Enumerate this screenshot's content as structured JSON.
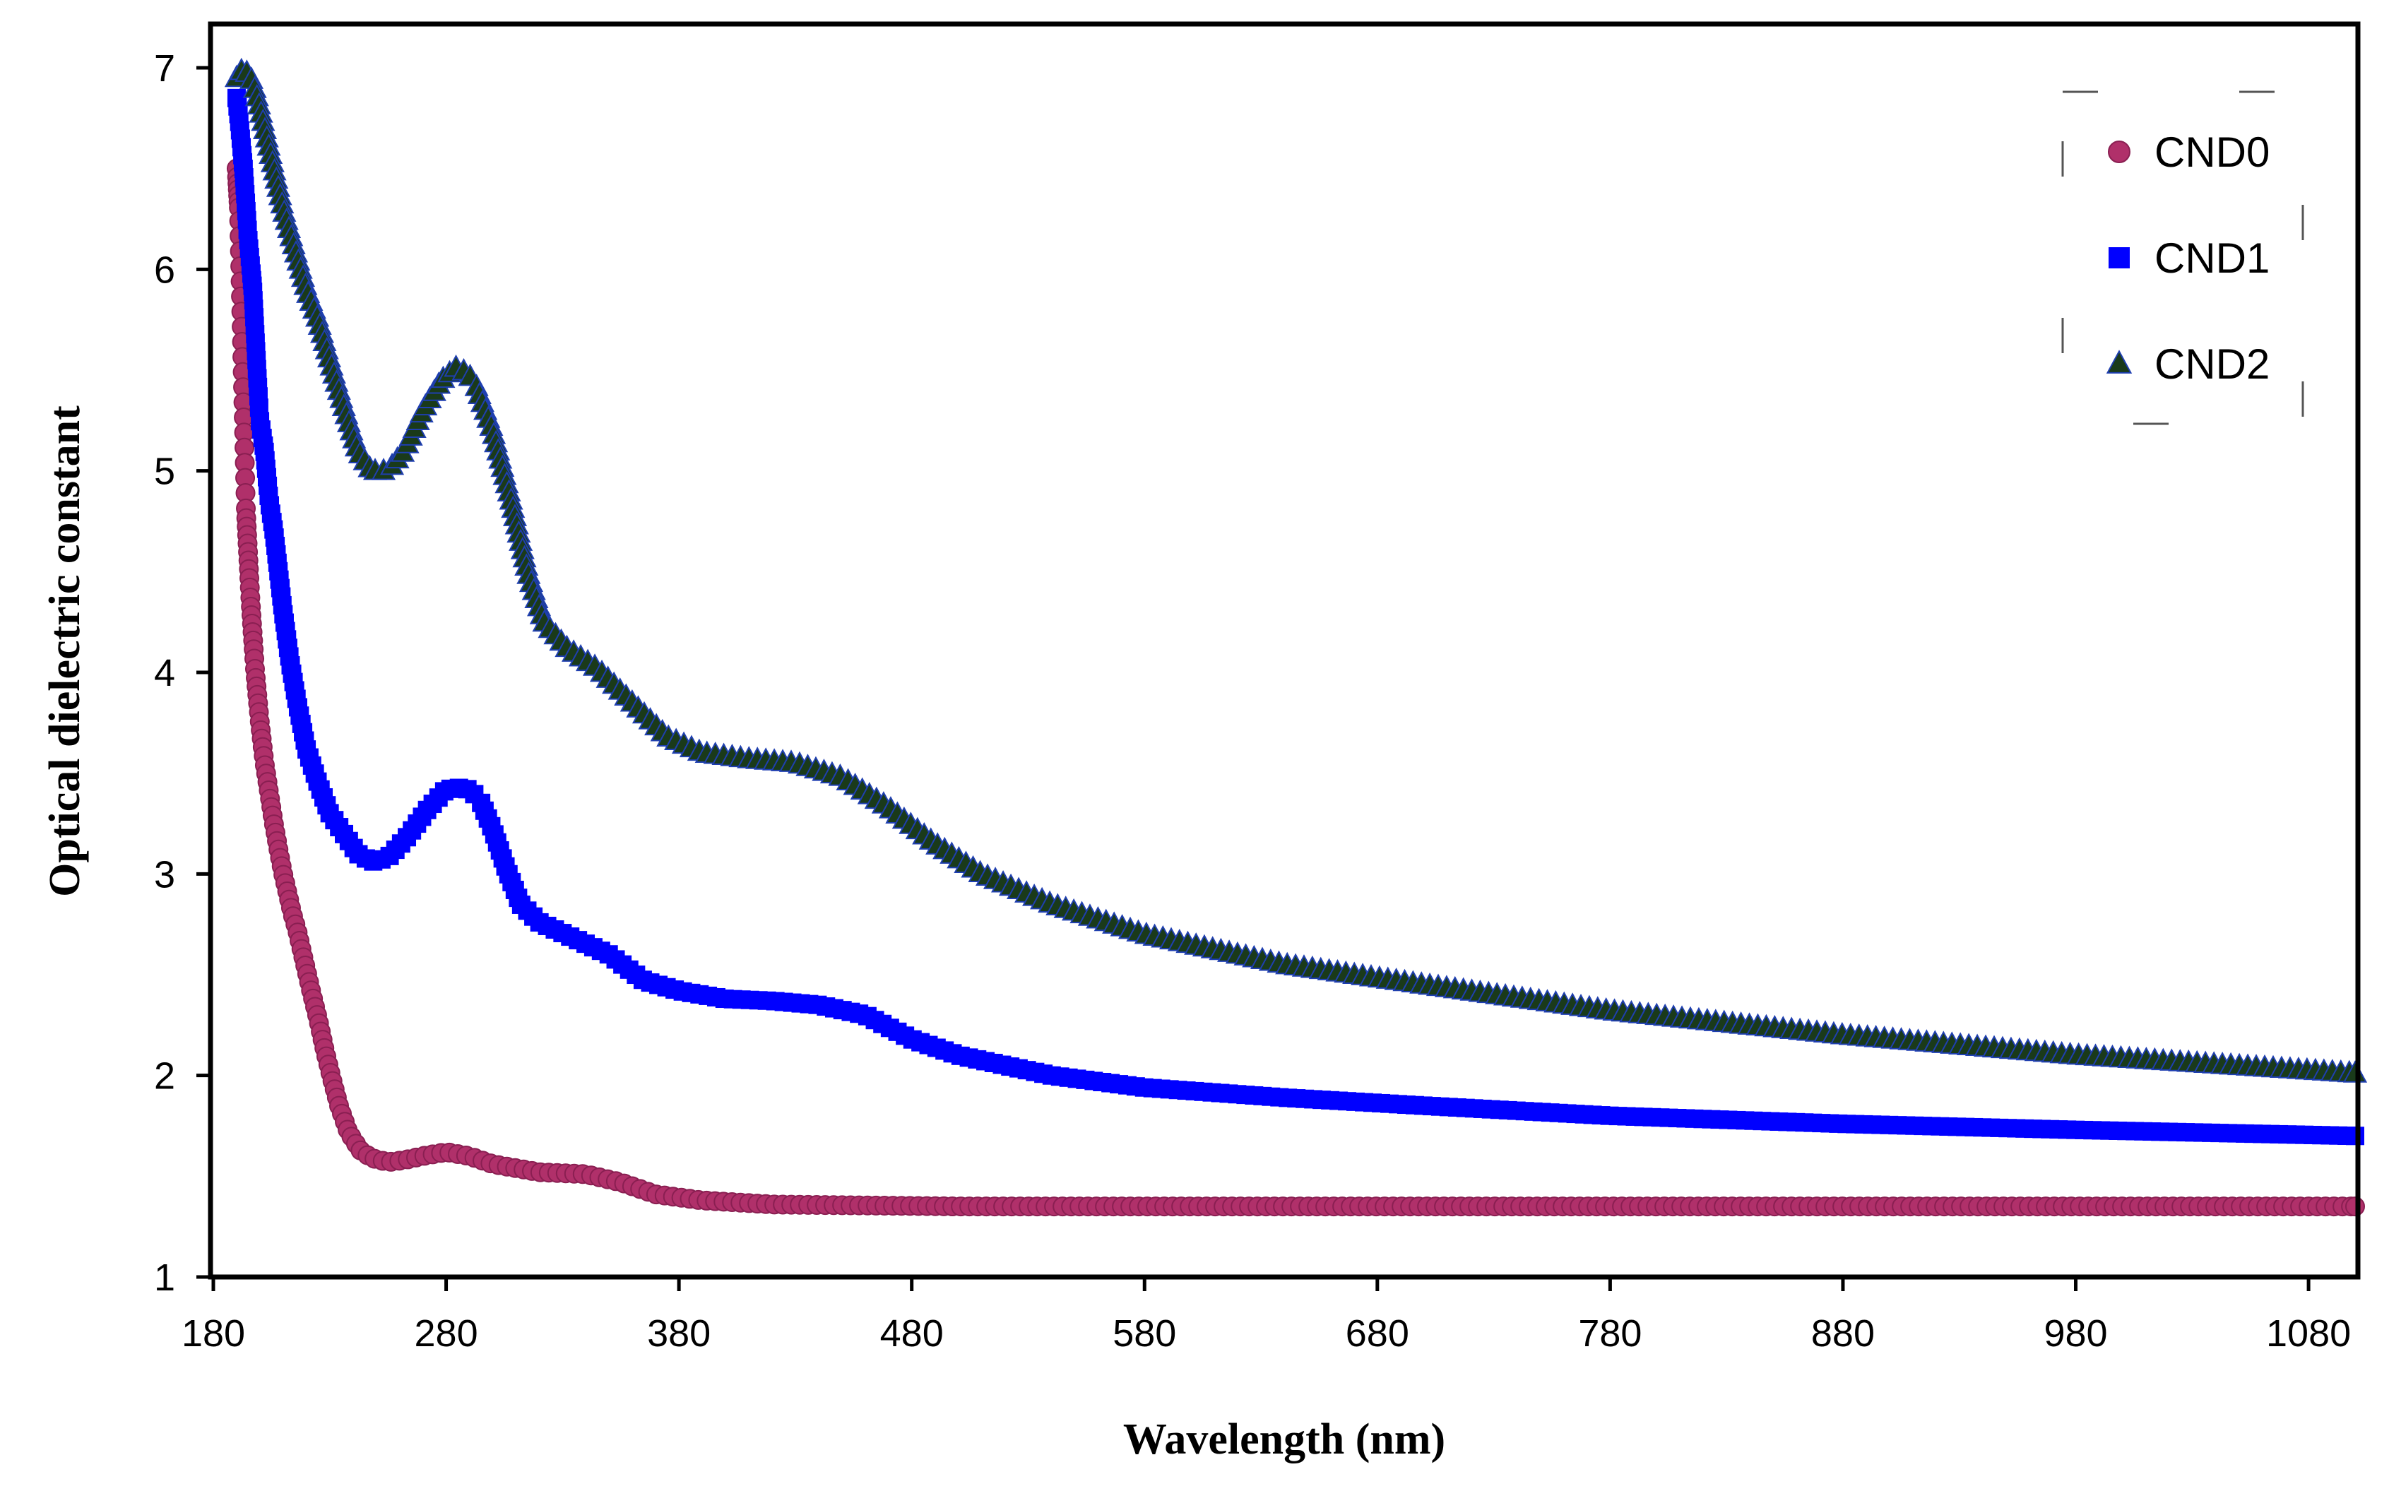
{
  "chart_data": {
    "type": "scatter",
    "title": "",
    "xlabel": "Wavelength (nm)",
    "ylabel": "Optical dielectric constant",
    "xlim": [
      180,
      1100
    ],
    "ylim": [
      1,
      7.2
    ],
    "xticks": [
      180,
      280,
      380,
      480,
      580,
      680,
      780,
      880,
      980,
      1080
    ],
    "yticks": [
      1,
      2,
      3,
      4,
      5,
      6,
      7
    ],
    "xtick_labels": [
      "180",
      "280",
      "380",
      "480",
      "580",
      "680",
      "780",
      "880",
      "980",
      "1080"
    ],
    "ytick_labels": [
      "1",
      "2",
      "3",
      "4",
      "5",
      "6",
      "7"
    ],
    "grid": false,
    "legend_position": "top-right",
    "series": [
      {
        "name": "CND0",
        "marker": "circle",
        "color": "#B0306A",
        "stroke": "#8A1F52",
        "points": [
          [
            190,
            6.5
          ],
          [
            191,
            6.3
          ],
          [
            192,
            5.8
          ],
          [
            193,
            5.3
          ],
          [
            194,
            4.8
          ],
          [
            196,
            4.35
          ],
          [
            198,
            4.0
          ],
          [
            200,
            3.75
          ],
          [
            202,
            3.55
          ],
          [
            204,
            3.4
          ],
          [
            206,
            3.25
          ],
          [
            208,
            3.12
          ],
          [
            210,
            3.0
          ],
          [
            212,
            2.9
          ],
          [
            214,
            2.8
          ],
          [
            216,
            2.72
          ],
          [
            218,
            2.62
          ],
          [
            220,
            2.52
          ],
          [
            222,
            2.42
          ],
          [
            225,
            2.28
          ],
          [
            228,
            2.12
          ],
          [
            231,
            1.98
          ],
          [
            234,
            1.85
          ],
          [
            238,
            1.72
          ],
          [
            243,
            1.63
          ],
          [
            248,
            1.59
          ],
          [
            255,
            1.57
          ],
          [
            262,
            1.58
          ],
          [
            270,
            1.6
          ],
          [
            280,
            1.62
          ],
          [
            290,
            1.6
          ],
          [
            300,
            1.56
          ],
          [
            310,
            1.54
          ],
          [
            320,
            1.52
          ],
          [
            340,
            1.51
          ],
          [
            355,
            1.47
          ],
          [
            370,
            1.41
          ],
          [
            390,
            1.38
          ],
          [
            420,
            1.36
          ],
          [
            500,
            1.35
          ],
          [
            600,
            1.35
          ],
          [
            800,
            1.35
          ],
          [
            1000,
            1.35
          ],
          [
            1100,
            1.35
          ]
        ]
      },
      {
        "name": "CND1",
        "marker": "square",
        "color": "#0000FF",
        "stroke": "#0000D0",
        "points": [
          [
            190,
            6.85
          ],
          [
            191,
            6.75
          ],
          [
            193,
            6.5
          ],
          [
            195,
            6.15
          ],
          [
            197,
            5.9
          ],
          [
            199,
            5.45
          ],
          [
            200,
            5.25
          ],
          [
            202,
            5.1
          ],
          [
            204,
            4.85
          ],
          [
            206,
            4.7
          ],
          [
            208,
            4.5
          ],
          [
            210,
            4.3
          ],
          [
            213,
            4.05
          ],
          [
            216,
            3.85
          ],
          [
            220,
            3.62
          ],
          [
            225,
            3.45
          ],
          [
            230,
            3.3
          ],
          [
            236,
            3.2
          ],
          [
            242,
            3.1
          ],
          [
            248,
            3.06
          ],
          [
            255,
            3.08
          ],
          [
            263,
            3.18
          ],
          [
            272,
            3.32
          ],
          [
            280,
            3.42
          ],
          [
            288,
            3.43
          ],
          [
            294,
            3.38
          ],
          [
            300,
            3.22
          ],
          [
            306,
            3.02
          ],
          [
            312,
            2.85
          ],
          [
            320,
            2.76
          ],
          [
            335,
            2.68
          ],
          [
            350,
            2.6
          ],
          [
            365,
            2.47
          ],
          [
            380,
            2.42
          ],
          [
            400,
            2.38
          ],
          [
            420,
            2.37
          ],
          [
            440,
            2.35
          ],
          [
            460,
            2.3
          ],
          [
            480,
            2.18
          ],
          [
            500,
            2.1
          ],
          [
            520,
            2.05
          ],
          [
            540,
            2.0
          ],
          [
            580,
            1.94
          ],
          [
            640,
            1.89
          ],
          [
            700,
            1.85
          ],
          [
            780,
            1.8
          ],
          [
            880,
            1.76
          ],
          [
            980,
            1.73
          ],
          [
            1100,
            1.7
          ]
        ]
      },
      {
        "name": "CND2",
        "marker": "triangle",
        "color": "#1A3A1A",
        "stroke": "#0A200A",
        "points": [
          [
            190,
            6.95
          ],
          [
            193,
            7.0
          ],
          [
            197,
            6.93
          ],
          [
            200,
            6.8
          ],
          [
            203,
            6.65
          ],
          [
            206,
            6.5
          ],
          [
            210,
            6.3
          ],
          [
            215,
            6.1
          ],
          [
            220,
            5.9
          ],
          [
            225,
            5.75
          ],
          [
            230,
            5.55
          ],
          [
            236,
            5.32
          ],
          [
            242,
            5.1
          ],
          [
            248,
            5.0
          ],
          [
            255,
            5.0
          ],
          [
            262,
            5.1
          ],
          [
            270,
            5.3
          ],
          [
            278,
            5.45
          ],
          [
            285,
            5.52
          ],
          [
            292,
            5.45
          ],
          [
            300,
            5.2
          ],
          [
            308,
            4.85
          ],
          [
            315,
            4.5
          ],
          [
            322,
            4.25
          ],
          [
            332,
            4.12
          ],
          [
            345,
            4.02
          ],
          [
            360,
            3.85
          ],
          [
            375,
            3.68
          ],
          [
            390,
            3.6
          ],
          [
            410,
            3.57
          ],
          [
            430,
            3.55
          ],
          [
            450,
            3.48
          ],
          [
            470,
            3.33
          ],
          [
            490,
            3.15
          ],
          [
            510,
            3.0
          ],
          [
            540,
            2.85
          ],
          [
            580,
            2.7
          ],
          [
            640,
            2.55
          ],
          [
            700,
            2.45
          ],
          [
            780,
            2.32
          ],
          [
            880,
            2.2
          ],
          [
            980,
            2.1
          ],
          [
            1100,
            2.01
          ]
        ]
      }
    ]
  }
}
